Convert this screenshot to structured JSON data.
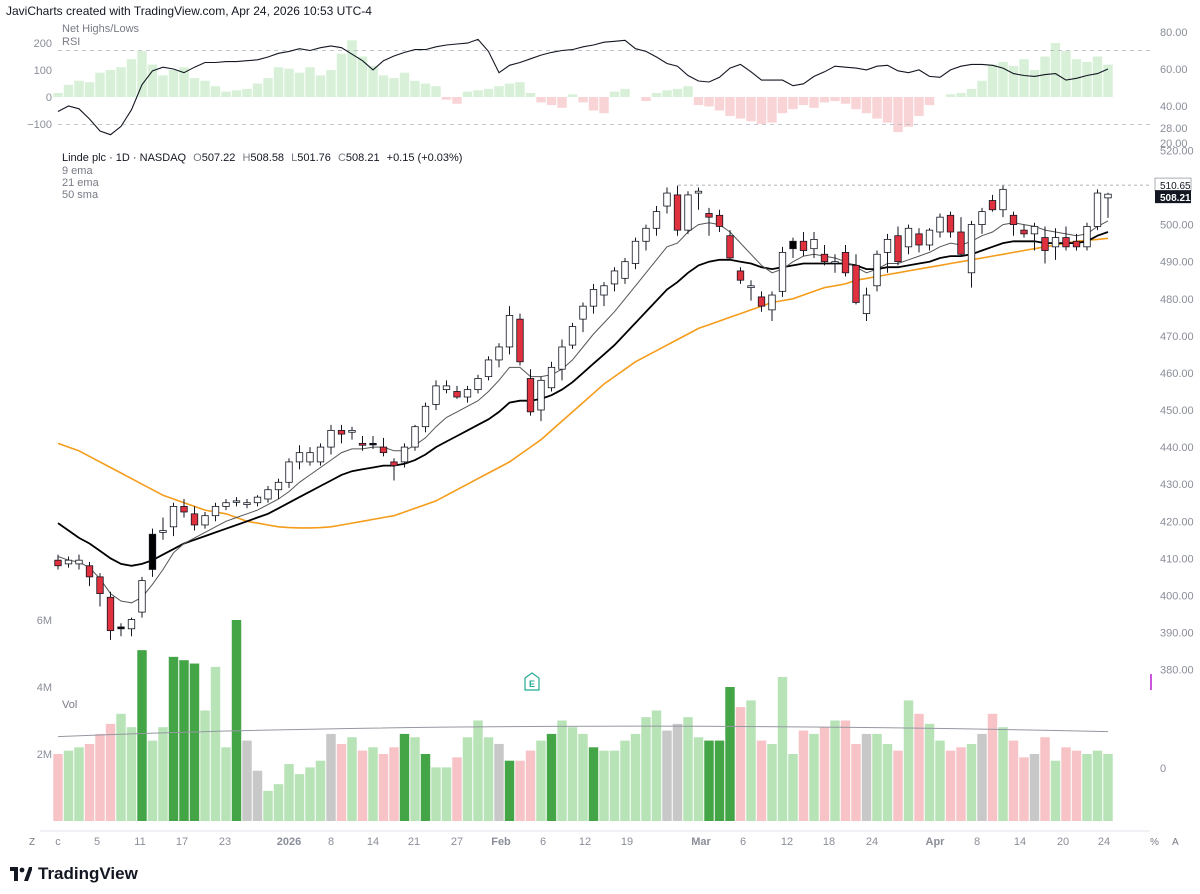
{
  "header": {
    "text": "JaviCharts created with TradingView.com, Apr 24, 2026 10:53 UTC-4"
  },
  "top_pane": {
    "labels": [
      "Net Highs/Lows",
      "RSI"
    ],
    "left_ticks": [
      "200",
      "100",
      "0",
      "−100"
    ],
    "right_ticks": [
      "80.00",
      "60.00",
      "40.00",
      "28.00",
      "20.00"
    ]
  },
  "price_pane": {
    "legend_title": "Linde plc · 1D · NASDAQ",
    "ohlc": {
      "o_label": "O",
      "o": "507.22",
      "h_label": "H",
      "h": "508.58",
      "l_label": "L",
      "l": "501.76",
      "c_label": "C",
      "c": "508.21",
      "change": "+0.15 (+0.03%)"
    },
    "indicators": [
      "9 ema",
      "21 ema",
      "50 sma"
    ],
    "right_ticks": [
      "520.00",
      "500.00",
      "490.00",
      "480.00",
      "470.00",
      "460.00",
      "450.00",
      "440.00",
      "430.00",
      "420.00",
      "410.00",
      "400.00",
      "390.00",
      "380.00"
    ],
    "price_tags": {
      "high_line": "510.65",
      "last": "508.21"
    },
    "earnings_marker": "E"
  },
  "volume_pane": {
    "label": "Vol",
    "left_ticks": [
      "6M",
      "4M",
      "2M"
    ],
    "right_tick": "0"
  },
  "time_axis": {
    "ticks": [
      "c",
      "5",
      "11",
      "17",
      "23",
      "2026",
      "8",
      "14",
      "21",
      "27",
      "Feb",
      "6",
      "12",
      "19",
      "Mar",
      "6",
      "12",
      "18",
      "24",
      "Apr",
      "8",
      "14",
      "20",
      "24"
    ]
  },
  "footer": {
    "brand": "TradingView",
    "corner_left": "Z",
    "corner_right": "A",
    "corner_mid": "%"
  },
  "colors": {
    "up_fill": "#ffffff",
    "down_fill": "#e0313f",
    "ema9": "#555555",
    "ema21": "#000000",
    "sma50": "#f59c1a",
    "vol_up": "#b7e3b7",
    "vol_down": "#f7c3c6",
    "vol_up_strong": "#44a547",
    "vol_neutral": "#c8c8c8"
  },
  "chart_data": {
    "type": "candlestick",
    "title": "Linde plc · 1D · NASDAQ",
    "ylim": [
      378,
      522
    ],
    "ohlc": [
      [
        409.5,
        411.0,
        407.0,
        408.0
      ],
      [
        408.5,
        410.5,
        407.5,
        409.5
      ],
      [
        408.5,
        411.0,
        407.0,
        409.5
      ],
      [
        408.0,
        409.0,
        402.5,
        405.0
      ],
      [
        405.0,
        406.0,
        397.0,
        400.5
      ],
      [
        399.5,
        401.0,
        388.0,
        390.5
      ],
      [
        391.0,
        392.5,
        389.0,
        391.5
      ],
      [
        391.0,
        394.0,
        389.0,
        393.5
      ],
      [
        395.5,
        405.0,
        394.0,
        404.0
      ],
      [
        407.0,
        418.0,
        405.0,
        416.5
      ],
      [
        417.0,
        421.0,
        415.0,
        417.5
      ],
      [
        418.5,
        425.0,
        416.0,
        424.0
      ],
      [
        424.0,
        426.0,
        421.0,
        422.5
      ],
      [
        422.0,
        424.0,
        417.5,
        419.0
      ],
      [
        419.0,
        422.5,
        418.0,
        421.5
      ],
      [
        421.5,
        425.0,
        420.0,
        424.0
      ],
      [
        424.0,
        426.0,
        423.0,
        425.0
      ],
      [
        425.5,
        426.5,
        424.0,
        425.5
      ],
      [
        424.5,
        426.0,
        423.5,
        425.0
      ],
      [
        425.0,
        427.0,
        424.0,
        426.5
      ],
      [
        426.0,
        429.5,
        425.0,
        428.5
      ],
      [
        428.5,
        431.5,
        426.0,
        430.5
      ],
      [
        430.5,
        437.0,
        429.0,
        436.0
      ],
      [
        436.0,
        440.5,
        434.0,
        438.5
      ],
      [
        438.5,
        440.0,
        435.0,
        436.0
      ],
      [
        436.0,
        441.0,
        435.0,
        440.0
      ],
      [
        440.0,
        446.0,
        438.0,
        444.5
      ],
      [
        444.5,
        446.0,
        441.0,
        443.5
      ],
      [
        444.0,
        445.5,
        442.0,
        444.5
      ],
      [
        441.0,
        443.0,
        439.0,
        440.5
      ],
      [
        441.0,
        443.0,
        439.5,
        441.0
      ],
      [
        440.0,
        442.5,
        437.5,
        438.5
      ],
      [
        436.0,
        437.0,
        431.0,
        435.0
      ],
      [
        436.0,
        441.0,
        434.5,
        440.0
      ],
      [
        440.0,
        446.0,
        439.0,
        445.5
      ],
      [
        445.5,
        452.0,
        444.0,
        451.0
      ],
      [
        451.5,
        458.0,
        450.0,
        456.5
      ],
      [
        456.5,
        458.0,
        454.5,
        455.5
      ],
      [
        455.0,
        456.5,
        453.0,
        453.5
      ],
      [
        453.5,
        456.5,
        452.0,
        455.5
      ],
      [
        455.5,
        459.5,
        454.5,
        458.5
      ],
      [
        459.0,
        464.5,
        458.0,
        463.5
      ],
      [
        463.5,
        468.0,
        461.5,
        467.0
      ],
      [
        467.0,
        478.0,
        465.0,
        475.5
      ],
      [
        474.5,
        476.0,
        462.0,
        463.0
      ],
      [
        458.5,
        461.0,
        448.5,
        449.5
      ],
      [
        450.0,
        459.0,
        447.0,
        458.0
      ],
      [
        456.0,
        463.0,
        455.0,
        461.5
      ],
      [
        461.0,
        469.0,
        458.0,
        467.0
      ],
      [
        467.5,
        473.5,
        466.5,
        472.5
      ],
      [
        474.5,
        479.0,
        471.0,
        478.0
      ],
      [
        478.0,
        484.0,
        476.0,
        482.5
      ],
      [
        481.0,
        484.5,
        478.0,
        483.5
      ],
      [
        484.0,
        488.5,
        482.0,
        487.5
      ],
      [
        485.5,
        491.0,
        484.0,
        490.0
      ],
      [
        489.5,
        496.5,
        488.0,
        495.5
      ],
      [
        495.5,
        500.0,
        493.0,
        499.0
      ],
      [
        499.0,
        505.0,
        497.0,
        503.5
      ],
      [
        505.0,
        510.0,
        503.0,
        508.5
      ],
      [
        508.0,
        510.5,
        497.0,
        498.5
      ],
      [
        498.5,
        509.0,
        497.5,
        508.0
      ],
      [
        508.5,
        510.0,
        504.0,
        509.0
      ],
      [
        503.0,
        504.5,
        497.0,
        502.0
      ],
      [
        502.5,
        504.0,
        498.0,
        499.5
      ],
      [
        497.0,
        498.5,
        490.5,
        491.0
      ],
      [
        487.5,
        488.5,
        484.0,
        485.0
      ],
      [
        483.5,
        485.0,
        479.5,
        483.0
      ],
      [
        480.5,
        482.0,
        476.5,
        478.0
      ],
      [
        477.0,
        482.0,
        474.0,
        481.0
      ],
      [
        482.0,
        494.0,
        480.5,
        492.5
      ],
      [
        493.5,
        496.5,
        491.0,
        495.5
      ],
      [
        495.5,
        498.0,
        491.5,
        493.0
      ],
      [
        493.5,
        498.0,
        491.0,
        496.0
      ],
      [
        492.0,
        494.5,
        489.0,
        490.0
      ],
      [
        490.0,
        492.0,
        487.0,
        490.0
      ],
      [
        492.5,
        494.5,
        486.0,
        487.0
      ],
      [
        489.0,
        492.0,
        478.5,
        479.0
      ],
      [
        476.0,
        483.0,
        474.0,
        481.0
      ],
      [
        483.5,
        493.0,
        482.0,
        492.0
      ],
      [
        492.5,
        497.5,
        487.0,
        496.0
      ],
      [
        497.0,
        499.5,
        489.0,
        490.0
      ],
      [
        494.0,
        500.0,
        492.0,
        499.0
      ],
      [
        497.5,
        499.0,
        492.5,
        494.5
      ],
      [
        494.5,
        499.0,
        493.0,
        498.5
      ],
      [
        498.0,
        503.0,
        496.5,
        502.0
      ],
      [
        502.5,
        503.5,
        496.5,
        498.0
      ],
      [
        498.0,
        502.0,
        491.5,
        492.0
      ],
      [
        487.0,
        501.0,
        483.0,
        500.0
      ],
      [
        500.0,
        504.5,
        497.5,
        503.5
      ],
      [
        506.5,
        508.0,
        503.5,
        504.0
      ],
      [
        504.0,
        510.5,
        502.0,
        509.5
      ],
      [
        502.5,
        503.5,
        497.0,
        500.0
      ],
      [
        498.5,
        500.0,
        496.5,
        497.5
      ],
      [
        497.5,
        500.5,
        493.0,
        499.5
      ],
      [
        496.5,
        499.5,
        489.5,
        493.0
      ],
      [
        494.0,
        499.0,
        490.5,
        496.5
      ],
      [
        496.5,
        499.5,
        493.0,
        494.0
      ],
      [
        495.5,
        497.5,
        493.0,
        494.0
      ],
      [
        494.0,
        500.5,
        493.0,
        499.5
      ],
      [
        499.5,
        509.5,
        498.5,
        508.5
      ],
      [
        507.2,
        508.6,
        501.8,
        508.2
      ]
    ],
    "down_candle_indices": [
      0,
      3,
      4,
      5,
      12,
      13,
      27,
      29,
      31,
      32,
      38,
      44,
      45,
      59,
      62,
      63,
      64,
      65,
      67,
      71,
      73,
      75,
      76,
      80,
      82,
      85,
      86,
      89,
      91,
      92,
      94,
      96,
      97
    ],
    "black_candle_indices": [
      6,
      9,
      30,
      70
    ],
    "ema9": [
      410.5,
      409.5,
      409.0,
      407.5,
      404.5,
      400.5,
      398.5,
      398.0,
      399.5,
      403.0,
      407.0,
      411.5,
      414.0,
      415.5,
      417.0,
      418.5,
      420.0,
      421.0,
      422.0,
      423.0,
      424.5,
      426.0,
      428.0,
      430.5,
      432.5,
      434.5,
      436.5,
      438.5,
      439.5,
      439.5,
      440.0,
      440.0,
      439.0,
      439.0,
      440.5,
      442.5,
      445.5,
      448.0,
      449.5,
      451.0,
      452.5,
      455.0,
      458.0,
      461.5,
      461.5,
      459.0,
      459.0,
      459.5,
      461.0,
      463.5,
      467.0,
      470.5,
      473.5,
      476.5,
      480.0,
      483.5,
      487.0,
      490.5,
      494.0,
      495.0,
      498.0,
      500.0,
      500.5,
      500.0,
      498.0,
      495.0,
      492.0,
      489.0,
      487.0,
      488.0,
      490.0,
      491.5,
      492.0,
      491.5,
      491.0,
      490.0,
      488.5,
      487.0,
      488.0,
      489.5,
      489.5,
      490.5,
      491.5,
      492.5,
      494.0,
      495.0,
      494.5,
      495.5,
      497.0,
      498.0,
      500.0,
      500.5,
      500.0,
      499.5,
      498.5,
      498.0,
      497.5,
      497.0,
      497.5,
      499.5,
      501.0
    ],
    "ema21": [
      419.5,
      417.5,
      415.5,
      414.0,
      412.0,
      410.0,
      408.5,
      408.0,
      408.5,
      409.5,
      411.0,
      412.5,
      414.0,
      415.0,
      416.0,
      417.0,
      418.0,
      419.0,
      420.0,
      421.0,
      422.0,
      423.5,
      425.0,
      426.5,
      428.0,
      429.5,
      431.0,
      432.5,
      433.5,
      434.0,
      434.5,
      435.0,
      435.0,
      435.5,
      436.5,
      438.0,
      440.0,
      441.5,
      443.0,
      444.5,
      446.0,
      447.5,
      449.5,
      452.0,
      452.5,
      452.5,
      453.0,
      454.0,
      455.5,
      457.5,
      460.0,
      462.5,
      465.0,
      467.5,
      470.5,
      473.5,
      476.5,
      479.5,
      482.5,
      484.5,
      487.0,
      489.0,
      490.0,
      490.5,
      490.5,
      490.0,
      489.5,
      488.5,
      488.0,
      488.5,
      489.0,
      489.5,
      489.5,
      489.5,
      489.5,
      489.5,
      489.0,
      488.0,
      488.0,
      488.5,
      488.5,
      489.0,
      489.5,
      490.0,
      491.0,
      491.5,
      491.5,
      492.0,
      493.0,
      494.0,
      495.0,
      495.5,
      495.5,
      495.5,
      495.0,
      495.0,
      495.0,
      495.0,
      495.5,
      497.0,
      498.0
    ],
    "sma50": [
      441.0,
      440.0,
      439.0,
      437.5,
      436.0,
      434.5,
      433.0,
      431.5,
      430.0,
      428.5,
      427.0,
      426.0,
      425.0,
      424.0,
      423.0,
      422.5,
      422.0,
      421.0,
      420.0,
      419.5,
      419.0,
      418.5,
      418.3,
      418.2,
      418.2,
      418.3,
      418.5,
      419.0,
      419.5,
      420.0,
      420.5,
      421.0,
      421.5,
      422.5,
      423.5,
      424.5,
      425.5,
      427.0,
      428.5,
      430.0,
      431.5,
      433.0,
      434.5,
      436.0,
      438.0,
      440.0,
      442.0,
      444.5,
      447.0,
      449.5,
      452.0,
      454.5,
      457.0,
      459.0,
      461.0,
      463.0,
      464.5,
      466.0,
      467.5,
      469.0,
      470.5,
      472.0,
      473.0,
      474.0,
      475.0,
      476.0,
      477.0,
      478.0,
      479.0,
      479.5,
      480.0,
      481.0,
      482.0,
      483.0,
      483.5,
      484.0,
      485.0,
      485.5,
      486.0,
      486.5,
      487.0,
      487.5,
      488.0,
      488.5,
      489.0,
      489.5,
      490.0,
      490.5,
      491.0,
      491.5,
      492.0,
      492.5,
      493.0,
      493.5,
      494.0,
      494.5,
      495.0,
      495.5,
      495.8,
      496.0,
      496.3
    ],
    "volume_M": [
      2.0,
      2.1,
      2.2,
      2.3,
      2.6,
      2.9,
      3.2,
      2.8,
      5.1,
      2.4,
      2.8,
      4.9,
      4.8,
      4.7,
      3.3,
      4.6,
      2.2,
      6.0,
      2.4,
      1.5,
      0.9,
      1.1,
      1.7,
      1.4,
      1.6,
      1.8,
      2.6,
      2.3,
      2.5,
      2.1,
      2.2,
      2.0,
      2.2,
      2.6,
      2.5,
      2.0,
      1.6,
      1.6,
      1.9,
      2.5,
      3.0,
      2.5,
      2.3,
      1.8,
      1.8,
      2.1,
      2.4,
      2.6,
      3.0,
      2.8,
      2.6,
      2.2,
      2.1,
      2.1,
      2.4,
      2.6,
      3.1,
      3.3,
      2.7,
      2.9,
      3.1,
      2.5,
      2.4,
      2.4,
      4.0,
      3.4,
      3.6,
      2.4,
      2.3,
      4.3,
      2.0,
      2.7,
      2.6,
      2.8,
      3.0,
      3.0,
      2.3,
      2.6,
      2.6,
      2.3,
      2.1,
      3.6,
      3.2,
      2.9,
      2.4,
      2.1,
      2.2,
      2.3,
      2.6,
      3.2,
      2.8,
      2.4,
      1.9,
      2.0,
      2.5,
      1.8,
      2.2,
      2.1,
      2.0,
      2.1,
      2.0
    ],
    "volume_avg_M": 2.4,
    "net_highs_lows": [
      15,
      45,
      60,
      55,
      90,
      100,
      110,
      140,
      170,
      120,
      80,
      100,
      110,
      70,
      60,
      40,
      20,
      25,
      30,
      50,
      70,
      110,
      105,
      90,
      110,
      80,
      100,
      160,
      210,
      150,
      115,
      80,
      70,
      90,
      60,
      50,
      40,
      -10,
      -25,
      20,
      25,
      30,
      40,
      50,
      55,
      15,
      -20,
      -30,
      -40,
      10,
      -20,
      -50,
      -60,
      20,
      30,
      0,
      -15,
      15,
      25,
      30,
      40,
      -30,
      -35,
      -50,
      -70,
      -80,
      -90,
      -100,
      -95,
      -60,
      -45,
      -30,
      -40,
      -20,
      -15,
      -25,
      -45,
      -60,
      -80,
      -95,
      -130,
      -110,
      -70,
      -30,
      0,
      10,
      15,
      30,
      60,
      120,
      130,
      115,
      140,
      100,
      150,
      200,
      170,
      140,
      130,
      150,
      120
    ],
    "rsi": [
      37.0,
      40.0,
      38.5,
      33.0,
      26.5,
      24.5,
      29.0,
      38.0,
      51.5,
      59.0,
      61.0,
      60.0,
      58.0,
      61.0,
      63.5,
      63.5,
      64.0,
      64.0,
      64.5,
      65.0,
      66.5,
      68.5,
      69.5,
      71.0,
      70.0,
      71.5,
      72.5,
      71.5,
      68.0,
      64.5,
      59.5,
      64.5,
      67.0,
      69.0,
      70.5,
      70.5,
      72.0,
      73.0,
      73.5,
      74.0,
      76.0,
      69.5,
      58.0,
      62.0,
      63.5,
      65.5,
      67.5,
      69.0,
      70.0,
      70.5,
      72.0,
      73.0,
      74.5,
      75.0,
      75.5,
      71.0,
      69.5,
      66.5,
      63.0,
      61.5,
      56.5,
      53.5,
      53.0,
      55.5,
      60.5,
      62.5,
      58.5,
      54.0,
      54.0,
      54.0,
      51.0,
      52.0,
      56.0,
      58.5,
      61.5,
      61.0,
      60.5,
      59.5,
      61.5,
      62.0,
      59.0,
      58.0,
      59.5,
      56.0,
      55.5,
      59.5,
      61.5,
      62.5,
      62.5,
      62.0,
      60.5,
      57.5,
      56.5,
      56.0,
      57.0,
      57.5,
      54.0,
      55.0,
      56.5,
      57.5,
      60.0
    ]
  }
}
